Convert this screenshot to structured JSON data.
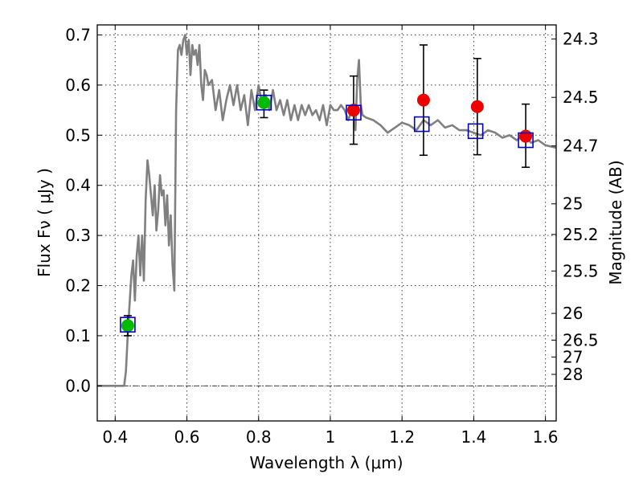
{
  "chart_data": {
    "type": "scatter",
    "xlabel": "Wavelength  λ (μm)",
    "ylabel": "Flux  Fν  ( μJy )",
    "y2label": "Magnitude (AB)",
    "xlim": [
      0.35,
      1.63
    ],
    "ylim": [
      -0.07,
      0.72
    ],
    "grid": true,
    "x_ticks": [
      0.4,
      0.6,
      0.8,
      1.0,
      1.2,
      1.4,
      1.6
    ],
    "x_tick_labels": [
      "0.4",
      "0.6",
      "0.8",
      "1",
      "1.2",
      "1.4",
      "1.6"
    ],
    "y_ticks": [
      0.0,
      0.1,
      0.2,
      0.3,
      0.4,
      0.5,
      0.6,
      0.7
    ],
    "y_tick_labels": [
      "0.0",
      "0.1",
      "0.2",
      "0.3",
      "0.4",
      "0.5",
      "0.6",
      "0.7"
    ],
    "mag_ticks": [
      24.3,
      24.5,
      24.7,
      25,
      25.2,
      25.5,
      26,
      26.5,
      27,
      28
    ],
    "mag_tick_labels": [
      "24.3",
      "24.5",
      "24.7",
      "25",
      "25.2",
      "25.5",
      "26",
      "26.5",
      "27",
      "28"
    ],
    "zero_line": 0.0,
    "model_sed": {
      "color": "#808080",
      "x": [
        0.35,
        0.425,
        0.43,
        0.435,
        0.44,
        0.445,
        0.45,
        0.455,
        0.46,
        0.465,
        0.47,
        0.475,
        0.48,
        0.485,
        0.49,
        0.495,
        0.5,
        0.505,
        0.51,
        0.515,
        0.52,
        0.525,
        0.53,
        0.535,
        0.54,
        0.545,
        0.55,
        0.555,
        0.56,
        0.565,
        0.57,
        0.575,
        0.58,
        0.585,
        0.59,
        0.595,
        0.6,
        0.605,
        0.61,
        0.615,
        0.62,
        0.625,
        0.63,
        0.635,
        0.64,
        0.645,
        0.65,
        0.655,
        0.66,
        0.67,
        0.68,
        0.69,
        0.7,
        0.71,
        0.72,
        0.73,
        0.74,
        0.75,
        0.76,
        0.77,
        0.78,
        0.79,
        0.8,
        0.81,
        0.82,
        0.83,
        0.84,
        0.85,
        0.86,
        0.87,
        0.88,
        0.89,
        0.9,
        0.91,
        0.92,
        0.93,
        0.94,
        0.95,
        0.96,
        0.97,
        0.98,
        0.99,
        1.0,
        1.01,
        1.02,
        1.03,
        1.04,
        1.05,
        1.06,
        1.065,
        1.07,
        1.075,
        1.08,
        1.085,
        1.09,
        1.1,
        1.12,
        1.14,
        1.16,
        1.18,
        1.2,
        1.22,
        1.24,
        1.26,
        1.28,
        1.3,
        1.32,
        1.34,
        1.36,
        1.38,
        1.4,
        1.42,
        1.44,
        1.46,
        1.48,
        1.5,
        1.52,
        1.54,
        1.56,
        1.58,
        1.6,
        1.63
      ],
      "y": [
        0.0,
        0.0,
        0.03,
        0.1,
        0.16,
        0.22,
        0.25,
        0.17,
        0.26,
        0.3,
        0.22,
        0.3,
        0.21,
        0.37,
        0.45,
        0.42,
        0.38,
        0.34,
        0.4,
        0.31,
        0.35,
        0.42,
        0.38,
        0.39,
        0.32,
        0.38,
        0.28,
        0.34,
        0.24,
        0.19,
        0.55,
        0.67,
        0.68,
        0.66,
        0.69,
        0.7,
        0.66,
        0.69,
        0.62,
        0.68,
        0.66,
        0.67,
        0.64,
        0.68,
        0.6,
        0.57,
        0.63,
        0.62,
        0.6,
        0.61,
        0.55,
        0.59,
        0.53,
        0.57,
        0.6,
        0.56,
        0.6,
        0.55,
        0.58,
        0.52,
        0.59,
        0.55,
        0.6,
        0.56,
        0.58,
        0.55,
        0.59,
        0.55,
        0.57,
        0.54,
        0.57,
        0.53,
        0.56,
        0.53,
        0.56,
        0.54,
        0.56,
        0.54,
        0.55,
        0.53,
        0.56,
        0.52,
        0.56,
        0.55,
        0.55,
        0.56,
        0.55,
        0.53,
        0.55,
        0.56,
        0.51,
        0.61,
        0.65,
        0.56,
        0.54,
        0.535,
        0.53,
        0.52,
        0.505,
        0.515,
        0.525,
        0.52,
        0.51,
        0.53,
        0.52,
        0.53,
        0.515,
        0.52,
        0.51,
        0.51,
        0.505,
        0.5,
        0.51,
        0.505,
        0.495,
        0.5,
        0.49,
        0.5,
        0.485,
        0.49,
        0.48,
        0.475
      ]
    },
    "series": [
      {
        "marker": "circle",
        "color": "#00bb00",
        "x": [
          0.435,
          0.815
        ],
        "y": [
          0.12,
          0.565
        ],
        "err_low": [
          0.02,
          0.03
        ],
        "err_high": [
          0.02,
          0.025
        ]
      },
      {
        "marker": "circle",
        "color": "#ee0000",
        "x": [
          1.065,
          1.26,
          1.41,
          1.545
        ],
        "y": [
          0.55,
          0.57,
          0.557,
          0.498
        ],
        "err_low": [
          0.068,
          0.11,
          0.096,
          0.062
        ],
        "err_high": [
          0.068,
          0.11,
          0.096,
          0.064
        ]
      },
      {
        "marker": "open-square",
        "color": "#0000cc",
        "x": [
          0.435,
          0.815,
          1.065,
          1.255,
          1.405,
          1.545
        ],
        "y": [
          0.122,
          0.565,
          0.545,
          0.522,
          0.508,
          0.49
        ]
      }
    ]
  }
}
